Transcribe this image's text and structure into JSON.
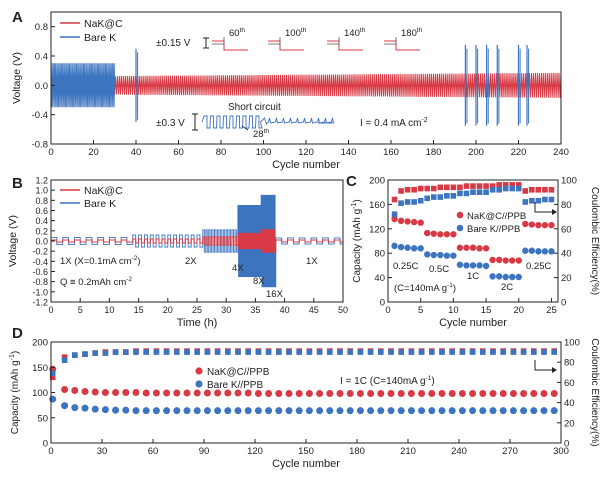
{
  "colors": {
    "red": "#d83a45",
    "blue": "#3c74c0",
    "axis": "#222222"
  },
  "panels": {
    "A": {
      "letter": "A"
    },
    "B": {
      "letter": "B"
    },
    "C": {
      "letter": "C"
    },
    "D": {
      "letter": "D"
    }
  },
  "chart_data": [
    {
      "id": "A",
      "type": "line",
      "xlabel": "Cycle number",
      "ylabel": "Voltage (V)",
      "xlim": [
        0,
        240
      ],
      "ylim": [
        -0.8,
        1.0
      ],
      "xticks": [
        "0",
        "20",
        "40",
        "60",
        "80",
        "100",
        "120",
        "140",
        "160",
        "180",
        "200",
        "220",
        "240"
      ],
      "yticks": [
        "-0.8",
        "-0.4",
        "0.0",
        "0.4",
        "0.8"
      ],
      "legend": [
        "NaK@C",
        "Bare K"
      ],
      "series": [
        {
          "name": "NaK@C",
          "amplitude_v": {
            "start": 0.12,
            "end": 0.17
          },
          "x_range": [
            0,
            240
          ]
        },
        {
          "name": "Bare K",
          "amplitude_v": 0.3,
          "x_range": [
            0,
            40
          ],
          "spikes_near": [
            40,
            195,
            200,
            205,
            210,
            220,
            224
          ]
        }
      ],
      "annotations": {
        "inset_top_scale": "±0.15 V",
        "inset_top_labels": [
          "60",
          "100",
          "140",
          "180"
        ],
        "inset_top_superscript": "th",
        "inset_bottom_scale": "±0.3 V",
        "short_circuit": "Short circuit",
        "short_circuit_cycle": "28",
        "current_prefix": "I = 0.4 mA cm",
        "current_sup": "-2"
      }
    },
    {
      "id": "B",
      "type": "line",
      "xlabel": "Time (h)",
      "ylabel": "Voltage (V)",
      "xlim": [
        0,
        50
      ],
      "ylim": [
        -1.2,
        1.2
      ],
      "xticks": [
        "0",
        "5",
        "10",
        "15",
        "20",
        "25",
        "30",
        "35",
        "40",
        "45",
        "50"
      ],
      "yticks": [
        "-1.2",
        "-1.0",
        "-0.8",
        "-0.6",
        "-0.4",
        "-0.2",
        "0.0",
        "0.2",
        "0.4",
        "0.6",
        "0.8",
        "1.0",
        "1.2"
      ],
      "legend": [
        "NaK@C",
        "Bare K"
      ],
      "current_steps": [
        {
          "label": "1X",
          "t": [
            0,
            14
          ],
          "nak_amp": 0.02,
          "k_amp": 0.07
        },
        {
          "label": "2X",
          "t": [
            14,
            26
          ],
          "nak_amp": 0.04,
          "k_amp": 0.12
        },
        {
          "label": "4X",
          "t": [
            26,
            32
          ],
          "nak_amp": 0.08,
          "k_amp": 0.22
        },
        {
          "label": "8X",
          "t": [
            32,
            36
          ],
          "nak_amp": 0.15,
          "k_amp": 0.7
        },
        {
          "label": "16X",
          "t": [
            36,
            38.5
          ],
          "nak_amp": 0.22,
          "k_amp": 0.9
        },
        {
          "label": "1X",
          "t": [
            38.5,
            50
          ],
          "nak_amp": 0.02,
          "k_amp": 0.06
        }
      ],
      "annotations": {
        "unit_line_prefix": "1X (X=0.1mA cm",
        "unit_line_sup": "-2",
        "unit_line_suffix": ")",
        "capacity_prefix": "Q ≡ 0.2mAh cm",
        "capacity_sup": "-2",
        "label_2x": "2X",
        "label_4x": "4X",
        "label_8x": "8X",
        "label_16x": "16X",
        "label_1x_end": "1X"
      }
    },
    {
      "id": "C",
      "type": "scatter",
      "xlabel": "Cycle number",
      "ylabel_left_prefix": "Capacity (mAh g",
      "ylabel_left_sup": "-1",
      "ylabel_left_suffix": ")",
      "ylabel_right": "Coulombic Efficiency(%)",
      "xlim": [
        0,
        26
      ],
      "ylim_left": [
        0,
        200
      ],
      "ylim_right": [
        0,
        100
      ],
      "xticks": [
        "0",
        "5",
        "10",
        "15",
        "20",
        "25"
      ],
      "yticks_left": [
        "0",
        "40",
        "80",
        "120",
        "160",
        "200"
      ],
      "yticks_right": [
        "0",
        "20",
        "40",
        "60",
        "80",
        "100"
      ],
      "legend": [
        "NaK@C//PPB",
        "Bare K//PPB"
      ],
      "series": [
        {
          "name": "NaK@C//PPB",
          "axis": "left",
          "marker": "circle",
          "x": [
            1,
            2,
            3,
            4,
            5,
            6,
            7,
            8,
            9,
            10,
            11,
            12,
            13,
            14,
            15,
            16,
            17,
            18,
            19,
            20,
            21,
            22,
            23,
            24,
            25
          ],
          "values": [
            136,
            133,
            132,
            131,
            130,
            113,
            112,
            111,
            111,
            111,
            89,
            89,
            89,
            88,
            88,
            69,
            69,
            68,
            68,
            68,
            128,
            127,
            126,
            126,
            126
          ]
        },
        {
          "name": "Bare K//PPB",
          "axis": "left",
          "marker": "circle",
          "x": [
            1,
            2,
            3,
            4,
            5,
            6,
            7,
            8,
            9,
            10,
            11,
            12,
            13,
            14,
            15,
            16,
            17,
            18,
            19,
            20,
            21,
            22,
            23,
            24,
            25
          ],
          "values": [
            92,
            90,
            89,
            88,
            88,
            78,
            77,
            77,
            76,
            76,
            61,
            60,
            60,
            60,
            59,
            42,
            42,
            41,
            41,
            41,
            84,
            84,
            83,
            83,
            83
          ]
        },
        {
          "name": "NaK@C CE",
          "axis": "right",
          "marker": "square",
          "x": [
            1,
            2,
            3,
            4,
            5,
            6,
            7,
            8,
            9,
            10,
            11,
            12,
            13,
            14,
            15,
            16,
            17,
            18,
            19,
            20,
            21,
            22,
            23,
            24,
            25
          ],
          "values": [
            84,
            91,
            92,
            92,
            93,
            93,
            93,
            94,
            94,
            94,
            94,
            95,
            95,
            95,
            95,
            95,
            96,
            96,
            96,
            96,
            91,
            92,
            92,
            92,
            92
          ]
        },
        {
          "name": "Bare K CE",
          "axis": "right",
          "marker": "square",
          "x": [
            1,
            2,
            3,
            4,
            5,
            6,
            7,
            8,
            9,
            10,
            11,
            12,
            13,
            14,
            15,
            16,
            17,
            18,
            19,
            20,
            21,
            22,
            23,
            24,
            25
          ],
          "values": [
            72,
            81,
            82,
            82,
            83,
            85,
            86,
            86,
            87,
            87,
            89,
            89,
            90,
            90,
            90,
            92,
            92,
            93,
            93,
            93,
            82,
            83,
            83,
            84,
            84
          ]
        }
      ],
      "annotations": {
        "rate_025": "0.25C",
        "rate_05": "0.5C",
        "rate_1": "1C",
        "rate_2": "2C",
        "rate_025_end": "0.25C",
        "cond_prefix": "(C=140mA g",
        "cond_sup": "-1",
        "cond_suffix": ")"
      }
    },
    {
      "id": "D",
      "type": "scatter",
      "xlabel": "Cycle number",
      "ylabel_left_prefix": "Capacity (mAh g",
      "ylabel_left_sup": "-1",
      "ylabel_left_suffix": ")",
      "ylabel_right": "Coulombic Efficiency(%)",
      "xlim": [
        0,
        300
      ],
      "ylim_left": [
        0,
        200
      ],
      "ylim_right": [
        0,
        100
      ],
      "xticks": [
        "0",
        "30",
        "60",
        "90",
        "120",
        "150",
        "180",
        "210",
        "240",
        "270",
        "300"
      ],
      "yticks_left": [
        "0",
        "50",
        "100",
        "150",
        "200"
      ],
      "yticks_right": [
        "0",
        "20",
        "40",
        "60",
        "80",
        "100"
      ],
      "legend": [
        "NaK@C//PPB",
        "Bare K//PPB"
      ],
      "series": [
        {
          "name": "NaK@C//PPB",
          "axis": "left",
          "marker": "circle",
          "x_start": 0,
          "x_step": 6,
          "count": 50,
          "values": [
            146,
            106,
            104,
            102,
            101,
            100,
            100,
            100,
            100,
            99,
            99,
            99,
            99,
            99,
            99,
            99,
            99,
            99,
            99,
            99,
            98,
            98,
            98,
            98,
            98,
            98,
            98,
            98,
            98,
            98,
            98,
            98,
            98,
            98,
            98,
            98,
            98,
            98,
            98,
            98,
            98,
            98,
            98,
            98,
            98,
            98,
            98,
            98,
            98,
            98
          ]
        },
        {
          "name": "Bare K//PPB",
          "axis": "left",
          "marker": "circle",
          "x_start": 0,
          "x_step": 6,
          "count": 50,
          "values": [
            87,
            74,
            70,
            69,
            67,
            66,
            65,
            65,
            64,
            64,
            64,
            64,
            64,
            64,
            64,
            64,
            64,
            64,
            64,
            64,
            64,
            64,
            64,
            64,
            64,
            64,
            64,
            64,
            64,
            64,
            64,
            64,
            64,
            64,
            64,
            64,
            64,
            64,
            64,
            64,
            64,
            64,
            64,
            64,
            64,
            64,
            64,
            64,
            64,
            64
          ]
        },
        {
          "name": "NaK@C CE",
          "axis": "right",
          "marker": "square",
          "x_start": 0,
          "x_step": 6,
          "count": 50,
          "values": [
            65,
            85,
            87,
            88,
            89,
            90,
            90,
            90,
            91,
            91,
            91,
            91,
            91,
            91,
            91,
            91,
            91,
            91,
            91,
            91,
            91,
            91,
            91,
            91,
            91,
            91,
            91,
            91,
            91,
            91,
            91,
            91,
            91,
            91,
            91,
            91,
            91,
            91,
            91,
            91,
            91,
            91,
            91,
            91,
            91,
            91,
            91,
            91,
            91,
            91
          ]
        },
        {
          "name": "Bare K CE",
          "axis": "right",
          "marker": "square",
          "x_start": 0,
          "x_step": 6,
          "count": 50,
          "values": [
            69,
            82,
            87,
            88,
            89,
            89,
            90,
            90,
            90,
            90,
            90,
            90,
            90,
            90,
            90,
            90,
            90,
            90,
            90,
            90,
            90,
            90,
            90,
            90,
            90,
            90,
            90,
            90,
            90,
            90,
            90,
            90,
            90,
            90,
            90,
            90,
            90,
            90,
            90,
            90,
            90,
            90,
            90,
            90,
            90,
            90,
            90,
            90,
            90,
            90
          ]
        }
      ],
      "annotations": {
        "current_prefix": "I = 1C (C=140mA g",
        "current_sup": "-1",
        "current_suffix": ")"
      }
    }
  ]
}
